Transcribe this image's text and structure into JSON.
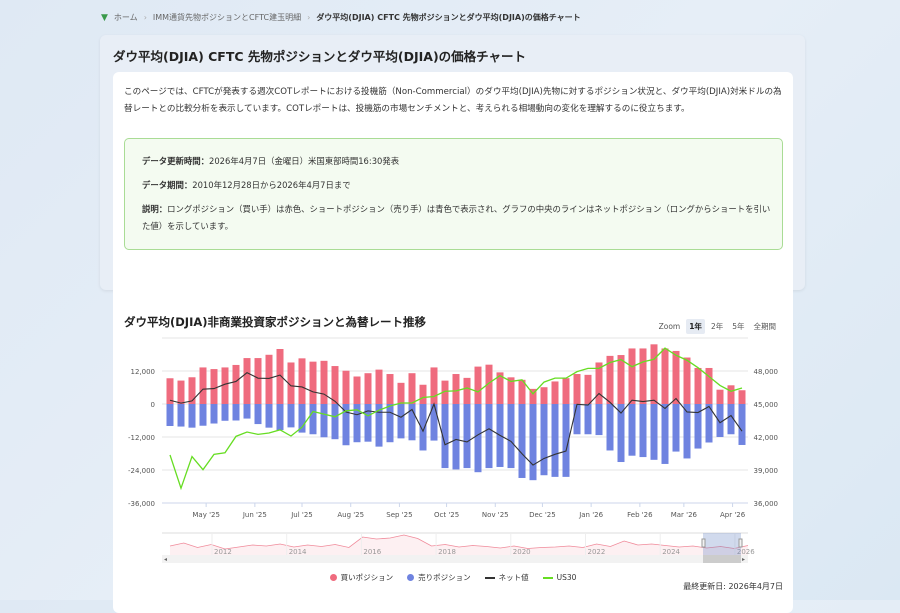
{
  "breadcrumb": {
    "home": "ホーム",
    "parent": "IMM通貨先物ポジションとCFTC建玉明細",
    "current": "ダウ平均(DJIA) CFTC 先物ポジションとダウ平均(DJIA)の価格チャート"
  },
  "page": {
    "title": "ダウ平均(DJIA) CFTC 先物ポジションとダウ平均(DJIA)の価格チャート",
    "intro": "このページでは、CFTCが発表する週次COTレポートにおける投機筋（Non-Commercial）のダウ平均(DJIA)先物に対するポジション状況と、ダウ平均(DJIA)対米ドルの為替レートとの比較分析を表示しています。COTレポートは、投機筋の市場センチメントと、考えられる相場動向の変化を理解するのに役立ちます。",
    "update_label": "データ更新時間：",
    "update_value": "2026年4月7日（金曜日）米国東部時間16:30発表",
    "period_label": "データ期間：",
    "period_value": "2010年12月28日から2026年4月7日まで",
    "desc_label": "説明：",
    "desc_value": "ロングポジション（買い手）は赤色、ショートポジション（売り手）は青色で表示され、グラフの中央のラインはネットポジション（ロングからショートを引いた値）を示しています。"
  },
  "chart_section": {
    "title": "ダウ平均(DJIA)非商業投資家ポジションと為替レート推移",
    "zoom_label": "Zoom",
    "zoom_options": [
      "1年",
      "2年",
      "5年",
      "全期間"
    ],
    "zoom_active": "1年",
    "last_updated": "最終更新日: 2026年4月7日"
  },
  "chart_data": {
    "type": "bar",
    "colors": {
      "long": "#ef6b7e",
      "short": "#6f83e0",
      "net": "#333333",
      "us30": "#66dd22"
    },
    "dates": [
      "2025-04-08",
      "2025-04-15",
      "2025-04-22",
      "2025-04-29",
      "2025-05-06",
      "2025-05-13",
      "2025-05-20",
      "2025-05-27",
      "2025-06-03",
      "2025-06-10",
      "2025-06-17",
      "2025-06-24",
      "2025-07-01",
      "2025-07-08",
      "2025-07-15",
      "2025-07-22",
      "2025-07-29",
      "2025-08-05",
      "2025-08-12",
      "2025-08-19",
      "2025-08-26",
      "2025-09-02",
      "2025-09-09",
      "2025-09-16",
      "2025-09-23",
      "2025-09-30",
      "2025-10-07",
      "2025-10-14",
      "2025-10-21",
      "2025-10-28",
      "2025-11-04",
      "2025-11-11",
      "2025-11-18",
      "2025-11-25",
      "2025-12-02",
      "2025-12-09",
      "2025-12-16",
      "2025-12-23",
      "2025-12-30",
      "2026-01-06",
      "2026-01-13",
      "2026-01-20",
      "2026-01-27",
      "2026-02-03",
      "2026-02-10",
      "2026-02-17",
      "2026-02-24",
      "2026-03-03",
      "2026-03-10",
      "2026-03-17",
      "2026-03-24",
      "2026-03-31",
      "2026-04-07"
    ],
    "series": [
      {
        "name": "買いポジション",
        "axis": "left",
        "values": [
          9360,
          8520,
          9720,
          13300,
          12700,
          13300,
          14200,
          16700,
          16700,
          17900,
          20000,
          15100,
          16600,
          15400,
          15700,
          13800,
          12100,
          10000,
          11200,
          12500,
          10900,
          7700,
          11200,
          7000,
          13300,
          8500,
          10900,
          9500,
          13600,
          14300,
          11500,
          9700,
          8800,
          5500,
          6100,
          8200,
          9400,
          10900,
          10600,
          15100,
          17500,
          17800,
          20200,
          20200,
          21700,
          20200,
          19300,
          16900,
          13100,
          13100,
          5200,
          6800,
          5000
        ]
      },
      {
        "name": "売りポジション",
        "axis": "left",
        "values": [
          -8000,
          -8200,
          -8600,
          -7900,
          -7100,
          -6100,
          -6000,
          -5300,
          -7300,
          -8600,
          -9500,
          -8500,
          -10400,
          -11000,
          -12100,
          -12800,
          -15000,
          -13900,
          -13700,
          -15500,
          -13900,
          -12500,
          -13200,
          -16900,
          -13300,
          -23300,
          -23800,
          -23300,
          -24800,
          -23300,
          -22900,
          -23300,
          -26900,
          -27700,
          -25900,
          -26500,
          -26500,
          -11000,
          -11000,
          -11300,
          -16900,
          -21100,
          -18800,
          -19300,
          -20300,
          -21800,
          -17300,
          -19800,
          -16200,
          -14000,
          -12000,
          -11000,
          -14900
        ]
      },
      {
        "name": "ネット値",
        "axis": "left",
        "values": [
          1360,
          320,
          1120,
          5400,
          5600,
          7200,
          8200,
          11400,
          9400,
          9300,
          10500,
          6600,
          6200,
          4400,
          3600,
          1000,
          -2900,
          -3900,
          -2500,
          -3000,
          -3000,
          -4800,
          -2000,
          -9900,
          0,
          -14800,
          -12900,
          -13800,
          -11200,
          -9000,
          -11400,
          -13600,
          -18100,
          -22200,
          -19800,
          -18300,
          -17100,
          -100,
          -400,
          3800,
          600,
          -3300,
          1400,
          900,
          1400,
          -1600,
          2000,
          -2900,
          -3100,
          -900,
          -6800,
          -4200,
          -9900
        ]
      },
      {
        "name": "US30",
        "axis": "right",
        "values": [
          40370,
          37340,
          40220,
          39030,
          40420,
          40570,
          42060,
          42450,
          42240,
          42360,
          42650,
          42090,
          42890,
          44320,
          44080,
          43840,
          44380,
          44470,
          43930,
          44440,
          44820,
          45090,
          45090,
          45590,
          45680,
          46160,
          46190,
          46460,
          46100,
          46900,
          47580,
          47050,
          47200,
          45920,
          46990,
          47350,
          47350,
          47940,
          48240,
          48240,
          48770,
          49040,
          48390,
          48830,
          49070,
          50080,
          49430,
          48980,
          48300,
          47500,
          46690,
          46160,
          46460
        ]
      }
    ],
    "left_axis": {
      "ticks": [
        "12,000",
        "0",
        "-12,000",
        "-24,000",
        "-36,000"
      ],
      "tick_values": [
        12000,
        0,
        -12000,
        -24000,
        -36000
      ],
      "range": [
        -36000,
        24000
      ]
    },
    "right_axis": {
      "ticks": [
        "48,000",
        "45,000",
        "42,000",
        "39,000",
        "36,000"
      ],
      "tick_values": [
        48000,
        45000,
        42000,
        39000,
        36000
      ],
      "range": [
        36000,
        51000
      ]
    },
    "x_ticks": [
      {
        "label": "May '25",
        "date": "2025-05-01"
      },
      {
        "label": "Jun '25",
        "date": "2025-06-01"
      },
      {
        "label": "Jul '25",
        "date": "2025-07-01"
      },
      {
        "label": "Aug '25",
        "date": "2025-08-01"
      },
      {
        "label": "Sep '25",
        "date": "2025-09-01"
      },
      {
        "label": "Oct '25",
        "date": "2025-10-01"
      },
      {
        "label": "Nov '25",
        "date": "2025-11-01"
      },
      {
        "label": "Dec '25",
        "date": "2025-12-01"
      },
      {
        "label": "Jan '26",
        "date": "2026-01-01"
      },
      {
        "label": "Feb '26",
        "date": "2026-02-01"
      },
      {
        "label": "Mar '26",
        "date": "2026-03-01"
      },
      {
        "label": "Apr '26",
        "date": "2026-04-01"
      }
    ],
    "grid": true,
    "legend": {
      "position": "bottom",
      "items": [
        "買いポジション",
        "売りポジション",
        "ネット値",
        "US30"
      ]
    },
    "navigator": {
      "years": [
        "2012",
        "2014",
        "2016",
        "2018",
        "2020",
        "2022",
        "2024",
        "2026"
      ],
      "long_values": [
        12000,
        18000,
        9000,
        15000,
        6000,
        10000,
        14000,
        12000,
        16000,
        10000,
        14000,
        11000,
        15000,
        9000,
        30000,
        26000,
        28000,
        34000,
        27000,
        12000,
        15000,
        10000,
        13000,
        11000,
        8000,
        12000,
        7000,
        9000,
        10000,
        12000,
        9000,
        16000,
        11000,
        22000,
        14000,
        16000,
        13000,
        10000,
        12000,
        8000,
        11000,
        7000,
        13000
      ]
    }
  }
}
